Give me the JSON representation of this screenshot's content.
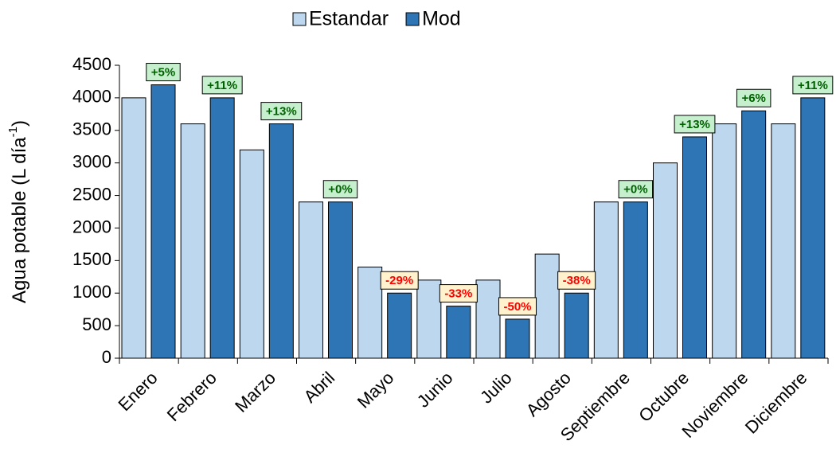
{
  "chart_data": {
    "type": "bar",
    "ylabel": {
      "text": "Agua potable (L día",
      "sup": "-1",
      "end": ")"
    },
    "categories": [
      "Enero",
      "Febrero",
      "Marzo",
      "Abril",
      "Mayo",
      "Junio",
      "Julio",
      "Agosto",
      "Septiembre",
      "Octubre",
      "Noviembre",
      "Diciembre"
    ],
    "series": [
      {
        "name": "Estandar",
        "color": "#bdd7ee",
        "values": [
          4000,
          3600,
          3200,
          2400,
          1400,
          1200,
          1200,
          1600,
          2400,
          3000,
          3600,
          3600
        ]
      },
      {
        "name": "Mod",
        "color": "#2e75b6",
        "values": [
          4200,
          4000,
          3600,
          2400,
          1000,
          800,
          600,
          1000,
          2400,
          3400,
          3800,
          4000
        ],
        "change_labels": [
          "+5%",
          "+11%",
          "+13%",
          "+0%",
          "-29%",
          "-33%",
          "-50%",
          "-38%",
          "+0%",
          "+13%",
          "+6%",
          "+11%"
        ]
      }
    ],
    "ylim": [
      0,
      4500
    ],
    "yticks": [
      0,
      500,
      1000,
      1500,
      2000,
      2500,
      3000,
      3500,
      4000,
      4500
    ],
    "legend": "top"
  }
}
